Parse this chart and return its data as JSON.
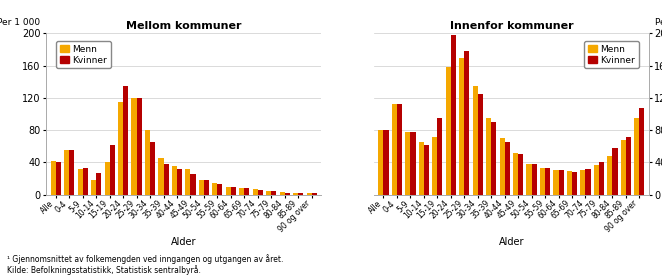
{
  "categories": [
    "Alle",
    "0-4",
    "5-9",
    "10-14",
    "15-19",
    "20-24",
    "25-29",
    "30-34",
    "35-39",
    "40-44",
    "45-49",
    "50-54",
    "55-59",
    "60-64",
    "65-69",
    "70-74",
    "75-79",
    "80-84",
    "85-89",
    "90 og over"
  ],
  "mellom_menn": [
    42,
    55,
    32,
    18,
    40,
    115,
    120,
    80,
    46,
    35,
    32,
    18,
    15,
    10,
    8,
    7,
    5,
    3,
    2,
    2
  ],
  "mellom_kvinner": [
    40,
    55,
    33,
    27,
    62,
    135,
    120,
    65,
    38,
    32,
    25,
    18,
    13,
    10,
    8,
    6,
    5,
    2,
    2,
    2
  ],
  "innenfor_menn": [
    80,
    112,
    78,
    65,
    72,
    158,
    170,
    135,
    95,
    70,
    52,
    38,
    33,
    30,
    29,
    30,
    37,
    48,
    68,
    95
  ],
  "innenfor_kvinner": [
    80,
    112,
    78,
    62,
    95,
    198,
    178,
    125,
    90,
    65,
    50,
    38,
    33,
    30,
    28,
    32,
    40,
    58,
    72,
    108
  ],
  "color_menn": "#F5A800",
  "color_kvinner": "#B50000",
  "title_left": "Mellom kommuner",
  "title_right": "Innenfor kommuner",
  "per1000_label": "Per 1 000",
  "xlabel": "Alder",
  "ylim": [
    0,
    200
  ],
  "yticks": [
    0,
    40,
    80,
    120,
    160,
    200
  ],
  "footnote1": "¹ Gjennomsnittet av folkemengden ved inngangen og utgangen av året.",
  "footnote2": "Kilde: Befolkningsstatistikk, Statistisk sentralbyrå."
}
